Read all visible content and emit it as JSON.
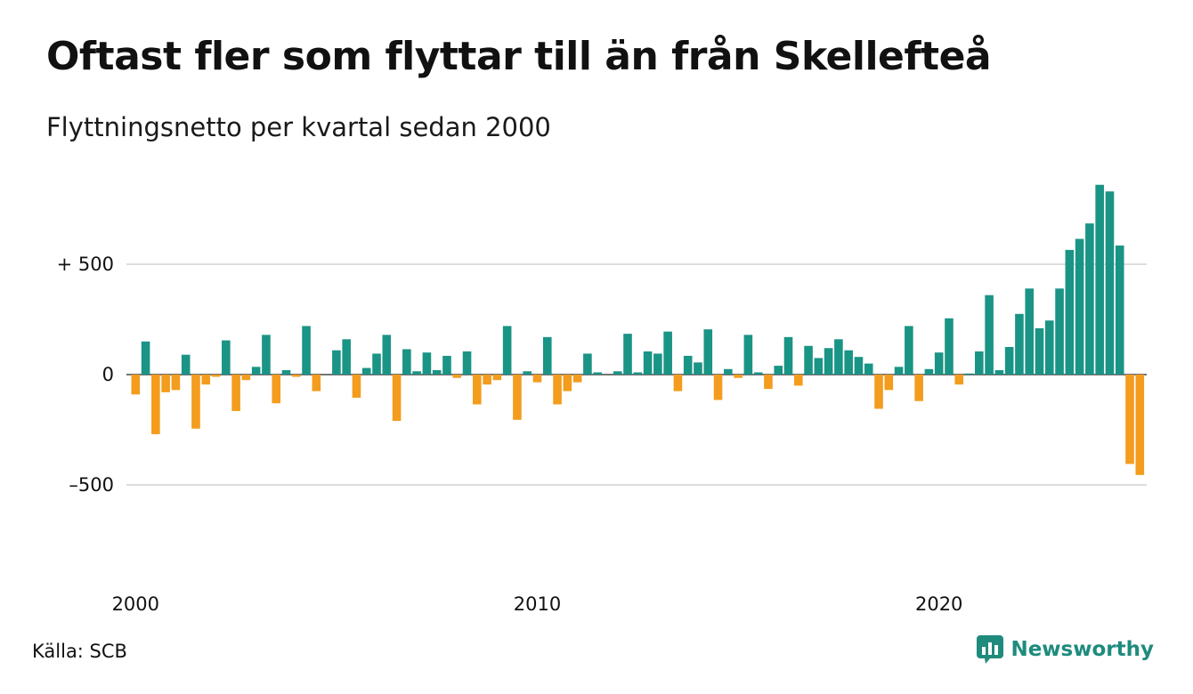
{
  "title": "Oftast fler som flyttar till än från Skellefteå",
  "subtitle": "Flyttningsnetto per kvartal sedan 2000",
  "source": "Källa: SCB",
  "brand": "Newsworthy",
  "colors": {
    "positive": "#1a9485",
    "negative": "#f39c1d",
    "grid": "#dddddd",
    "brand": "#1e8b7d"
  },
  "chart_data": {
    "type": "bar",
    "x_start": "2000 Q1",
    "frequency": "quarterly",
    "x_tick_labels": [
      "2000",
      "2010",
      "2020"
    ],
    "y_tick_labels": [
      "+ 500",
      "0",
      "–500"
    ],
    "y_ticks": [
      500,
      0,
      -500
    ],
    "ylim": [
      -700,
      900
    ],
    "values": [
      -90,
      150,
      -270,
      -80,
      -70,
      90,
      -245,
      -45,
      -10,
      155,
      -165,
      -25,
      35,
      180,
      -130,
      20,
      -10,
      220,
      -75,
      0,
      110,
      160,
      -105,
      30,
      95,
      180,
      -210,
      115,
      15,
      100,
      20,
      85,
      -15,
      105,
      -135,
      -45,
      -25,
      220,
      -205,
      15,
      -35,
      170,
      -135,
      -75,
      -35,
      95,
      10,
      0,
      15,
      185,
      10,
      105,
      95,
      195,
      -75,
      85,
      55,
      205,
      -115,
      25,
      -15,
      180,
      10,
      -65,
      40,
      170,
      -50,
      130,
      75,
      120,
      160,
      110,
      80,
      50,
      -155,
      -70,
      35,
      220,
      -120,
      25,
      100,
      255,
      -45,
      5,
      105,
      360,
      20,
      125,
      275,
      390,
      210,
      245,
      390,
      565,
      615,
      685,
      860,
      830,
      585,
      -405,
      -455
    ]
  }
}
